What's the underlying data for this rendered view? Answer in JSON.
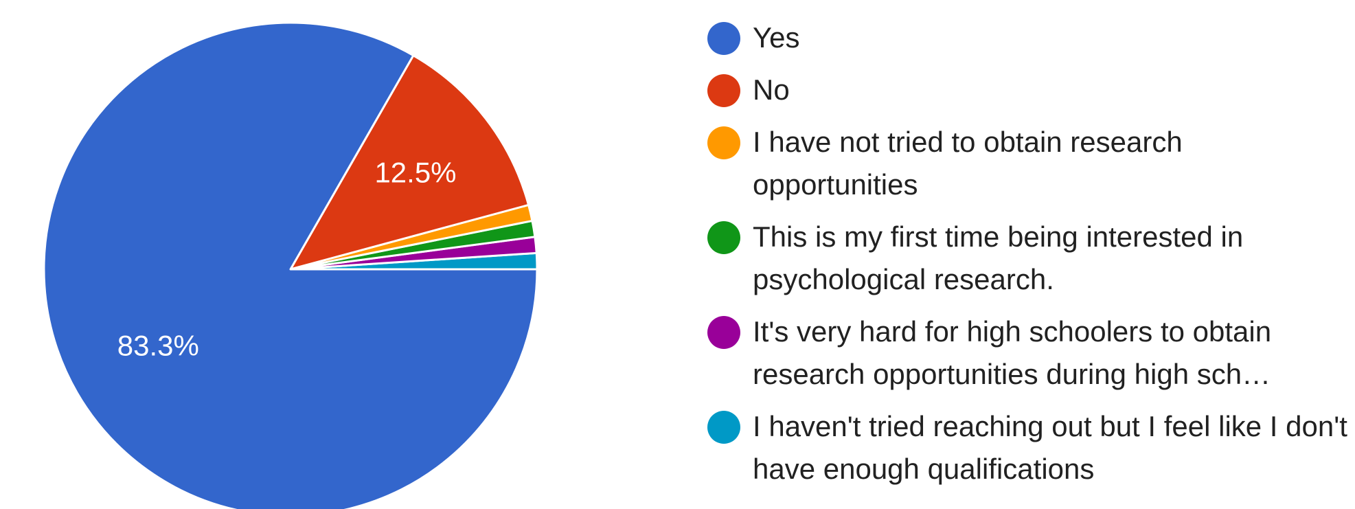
{
  "chart_data": {
    "type": "pie",
    "slices": [
      {
        "label": "Yes",
        "percent": 83.3,
        "color": "#3366cc",
        "display_label": "83.3%"
      },
      {
        "label": "No",
        "percent": 12.5,
        "color": "#dc3912",
        "display_label": "12.5%"
      },
      {
        "label": "I have not tried to obtain research opportunities",
        "percent": 1.05,
        "color": "#ff9900",
        "display_label": ""
      },
      {
        "label": "This is my first time being interested in psychological research.",
        "percent": 1.05,
        "color": "#109618",
        "display_label": ""
      },
      {
        "label": "It's very hard for high schoolers to obtain research opportunities during high sch…",
        "percent": 1.05,
        "color": "#990099",
        "display_label": ""
      },
      {
        "label": "I haven't tried reaching out but I feel like I don't have enough qualifications",
        "percent": 1.05,
        "color": "#0099c6",
        "display_label": ""
      }
    ],
    "legend_position": "right",
    "start_angle": "3 o'clock, counter-clockwise for small slices"
  }
}
